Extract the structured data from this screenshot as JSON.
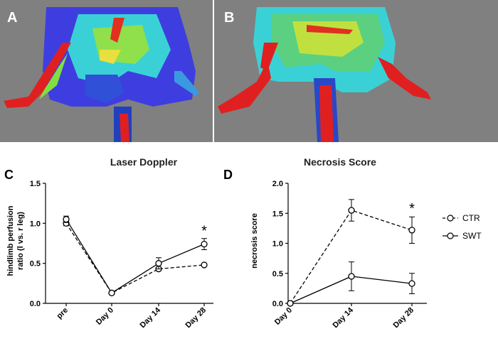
{
  "panels": {
    "a": {
      "letter": "A"
    },
    "b": {
      "letter": "B"
    },
    "c": {
      "letter": "C"
    },
    "d": {
      "letter": "D"
    }
  },
  "legend": {
    "entries": [
      {
        "name": "CTR",
        "style": "dashed"
      },
      {
        "name": "SWT",
        "style": "solid"
      }
    ]
  },
  "chart_data": [
    {
      "type": "line",
      "title": "Laser Doppler",
      "xlabel": "",
      "ylabel": "hindlimb perfusion ratio (l vs. r leg)",
      "ylabel_lines": [
        "hindlimb perfusion",
        "ratio (l vs. r leg)"
      ],
      "categories": [
        "pre",
        "Day 0",
        "Day 14",
        "Day 28"
      ],
      "ylim": [
        0,
        1.5
      ],
      "yticks": [
        "0.0",
        "0.5",
        "1.0",
        "1.5"
      ],
      "series": [
        {
          "name": "CTR",
          "style": "dashed",
          "values": [
            1.0,
            0.13,
            0.43,
            0.48
          ],
          "errors": [
            0.03,
            0.01,
            0.02,
            0.01
          ]
        },
        {
          "name": "SWT",
          "style": "solid",
          "values": [
            1.05,
            0.13,
            0.5,
            0.74
          ],
          "errors": [
            0.04,
            0.01,
            0.07,
            0.07
          ]
        }
      ],
      "annotations": [
        {
          "text": "*",
          "category": "Day 28",
          "y": 0.92
        }
      ]
    },
    {
      "type": "line",
      "title": "Necrosis Score",
      "xlabel": "",
      "ylabel": "necrosis score",
      "ylabel_lines": [
        "necrosis score"
      ],
      "categories": [
        "Day 0",
        "Day 14",
        "Day 28"
      ],
      "ylim": [
        0,
        2.0
      ],
      "yticks": [
        "0.0",
        "0.5",
        "1.0",
        "1.5",
        "2.0"
      ],
      "series": [
        {
          "name": "CTR",
          "style": "dashed",
          "values": [
            0.0,
            1.55,
            1.22
          ],
          "errors": [
            0.0,
            0.18,
            0.22
          ]
        },
        {
          "name": "SWT",
          "style": "solid",
          "values": [
            0.0,
            0.45,
            0.33
          ],
          "errors": [
            0.0,
            0.24,
            0.17
          ]
        }
      ],
      "annotations": [
        {
          "text": "*",
          "category": "Day 28",
          "y": 1.6
        }
      ]
    }
  ]
}
